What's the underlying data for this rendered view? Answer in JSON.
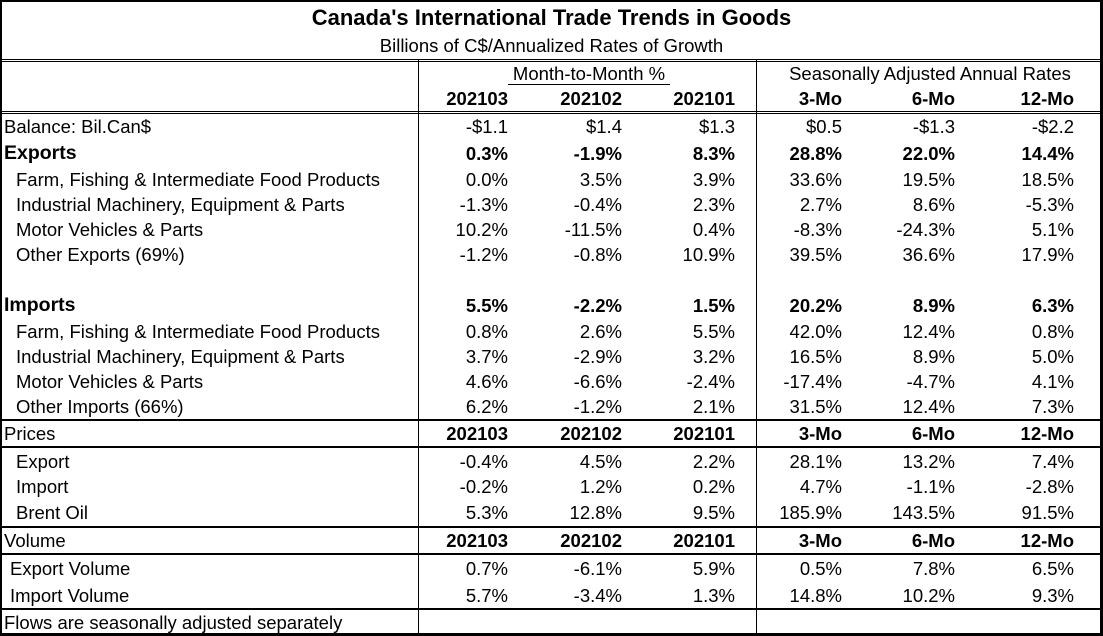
{
  "title": "Canada's International Trade Trends in Goods",
  "subtitle": "Billions of C$/Annualized Rates of Growth",
  "group_headers": {
    "monthly": "Month-to-Month %",
    "annual": "Seasonally Adjusted Annual Rates"
  },
  "column_headers": [
    "202103",
    "202102",
    "202101",
    "3-Mo",
    "6-Mo",
    "12-Mo"
  ],
  "balance": {
    "label": "Balance: Bil.Can$",
    "values": [
      "-$1.1",
      "$1.4",
      "$1.3",
      "$0.5",
      "-$1.3",
      "-$2.2"
    ]
  },
  "exports": {
    "label": "Exports",
    "values": [
      "0.3%",
      "-1.9%",
      "8.3%",
      "28.8%",
      "22.0%",
      "14.4%"
    ],
    "rows": [
      {
        "label": "Farm, Fishing & Intermediate Food Products",
        "values": [
          "0.0%",
          "3.5%",
          "3.9%",
          "33.6%",
          "19.5%",
          "18.5%"
        ]
      },
      {
        "label": "Industrial Machinery, Equipment & Parts",
        "values": [
          "-1.3%",
          "-0.4%",
          "2.3%",
          "2.7%",
          "8.6%",
          "-5.3%"
        ]
      },
      {
        "label": "Motor Vehicles & Parts",
        "values": [
          "10.2%",
          "-11.5%",
          "0.4%",
          "-8.3%",
          "-24.3%",
          "5.1%"
        ]
      },
      {
        "label": "Other Exports (69%)",
        "values": [
          "-1.2%",
          "-0.8%",
          "10.9%",
          "39.5%",
          "36.6%",
          "17.9%"
        ]
      }
    ]
  },
  "imports": {
    "label": "Imports",
    "values": [
      "5.5%",
      "-2.2%",
      "1.5%",
      "20.2%",
      "8.9%",
      "6.3%"
    ],
    "rows": [
      {
        "label": "Farm, Fishing & Intermediate Food Products",
        "values": [
          "0.8%",
          "2.6%",
          "5.5%",
          "42.0%",
          "12.4%",
          "0.8%"
        ]
      },
      {
        "label": "Industrial Machinery, Equipment & Parts",
        "values": [
          "3.7%",
          "-2.9%",
          "3.2%",
          "16.5%",
          "8.9%",
          "5.0%"
        ]
      },
      {
        "label": "Motor Vehicles & Parts",
        "values": [
          "4.6%",
          "-6.6%",
          "-2.4%",
          "-17.4%",
          "-4.7%",
          "4.1%"
        ]
      },
      {
        "label": "Other Imports (66%)",
        "values": [
          "6.2%",
          "-1.2%",
          "2.1%",
          "31.5%",
          "12.4%",
          "7.3%"
        ]
      }
    ]
  },
  "prices": {
    "label": "Prices",
    "headers": [
      "202103",
      "202102",
      "202101",
      "3-Mo",
      "6-Mo",
      "12-Mo"
    ],
    "rows": [
      {
        "label": "Export",
        "values": [
          "-0.4%",
          "4.5%",
          "2.2%",
          "28.1%",
          "13.2%",
          "7.4%"
        ]
      },
      {
        "label": "Import",
        "values": [
          "-0.2%",
          "1.2%",
          "0.2%",
          "4.7%",
          "-1.1%",
          "-2.8%"
        ]
      },
      {
        "label": "Brent Oil",
        "values": [
          "5.3%",
          "12.8%",
          "9.5%",
          "185.9%",
          "143.5%",
          "91.5%"
        ]
      }
    ]
  },
  "volume": {
    "label": "Volume",
    "headers": [
      "202103",
      "202102",
      "202101",
      "3-Mo",
      "6-Mo",
      "12-Mo"
    ],
    "rows": [
      {
        "label": "Export Volume",
        "values": [
          "0.7%",
          "-6.1%",
          "5.9%",
          "0.5%",
          "7.8%",
          "6.5%"
        ]
      },
      {
        "label": "Import Volume",
        "values": [
          "5.7%",
          "-3.4%",
          "1.3%",
          "14.8%",
          "10.2%",
          "9.3%"
        ]
      }
    ]
  },
  "footnote": "Flows are seasonally adjusted separately"
}
